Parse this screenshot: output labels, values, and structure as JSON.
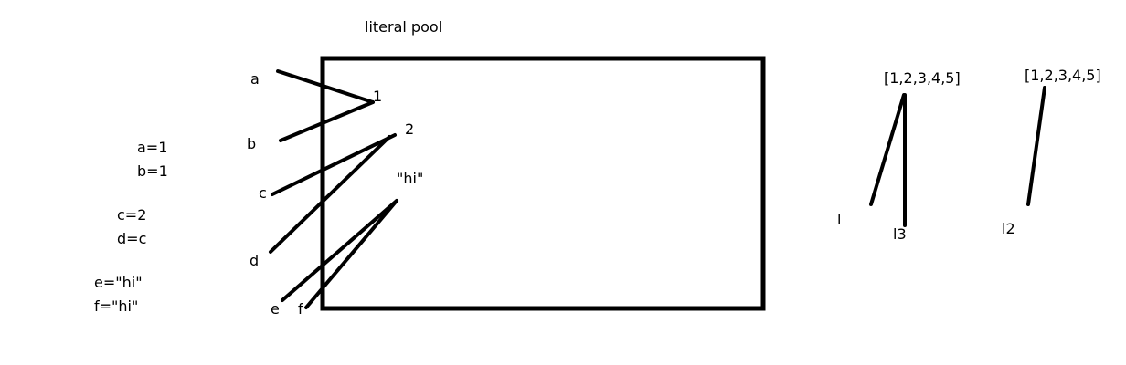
{
  "pool": {
    "title": "literal pool",
    "values": [
      "1",
      "2",
      "\"hi\""
    ]
  },
  "code": [
    "a=1",
    "b=1",
    "c=2",
    "d=c",
    "e=\"hi\"",
    "f=\"hi\""
  ],
  "variables": [
    "a",
    "b",
    "c",
    "d",
    "e",
    "f"
  ],
  "lists": {
    "list1": "[1,2,3,4,5]",
    "list2": "[1,2,3,4,5]",
    "names": [
      "l",
      "l3",
      "l2"
    ]
  },
  "colors": {
    "ink": "#000000",
    "background": "#ffffff"
  }
}
